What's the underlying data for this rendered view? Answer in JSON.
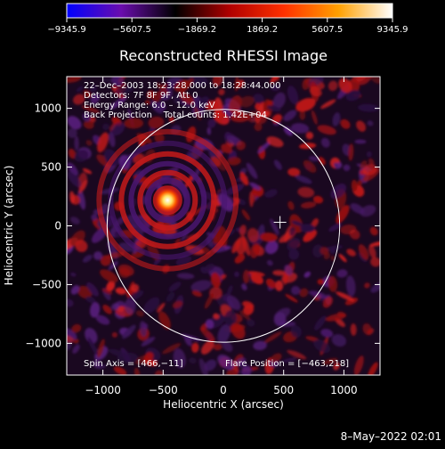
{
  "colorbar": {
    "ticks": [
      "−9345.9",
      "−5607.5",
      "−1869.2",
      "1869.2",
      "5607.5",
      "9345.9"
    ],
    "stops": [
      "#0000ff",
      "#6a0dad",
      "#000000",
      "#b00000",
      "#ff3000",
      "#ffa000",
      "#ffffff"
    ]
  },
  "chart_data": {
    "type": "heatmap",
    "title": "Reconstructed RHESSI Image",
    "xlabel": "Heliocentric X (arcsec)",
    "ylabel": "Heliocentric Y (arcsec)",
    "xlim": [
      -1300,
      1300
    ],
    "ylim": [
      -1270,
      1270
    ],
    "xticks": [
      -1000,
      -500,
      0,
      500,
      1000
    ],
    "yticks": [
      -1000,
      -500,
      0,
      500,
      1000
    ],
    "xtick_labels": [
      "−1000",
      "−500",
      "0",
      "500",
      "1000"
    ],
    "ytick_labels": [
      "−1000",
      "−500",
      "0",
      "500",
      "1000"
    ],
    "clim": [
      -9345.9,
      9345.9
    ],
    "flare_source": {
      "x": -463,
      "y": 218
    },
    "solar_limb_radius": 965,
    "center_marker": {
      "x": 470,
      "y": 30
    },
    "info_lines": [
      "22–Dec–2003 18:23:28.000 to 18:28:44.000",
      "Detectors: 7F 8F 9F, Att 0",
      "Energy Range: 6.0 – 12.0 keV",
      "Back Projection    Total counts: 1.42E+04"
    ],
    "spin_axis": "Spin Axis = [466,−11]",
    "flare_position": "Flare Position = [−463,218]"
  },
  "timestamp": "8–May–2022 02:01"
}
